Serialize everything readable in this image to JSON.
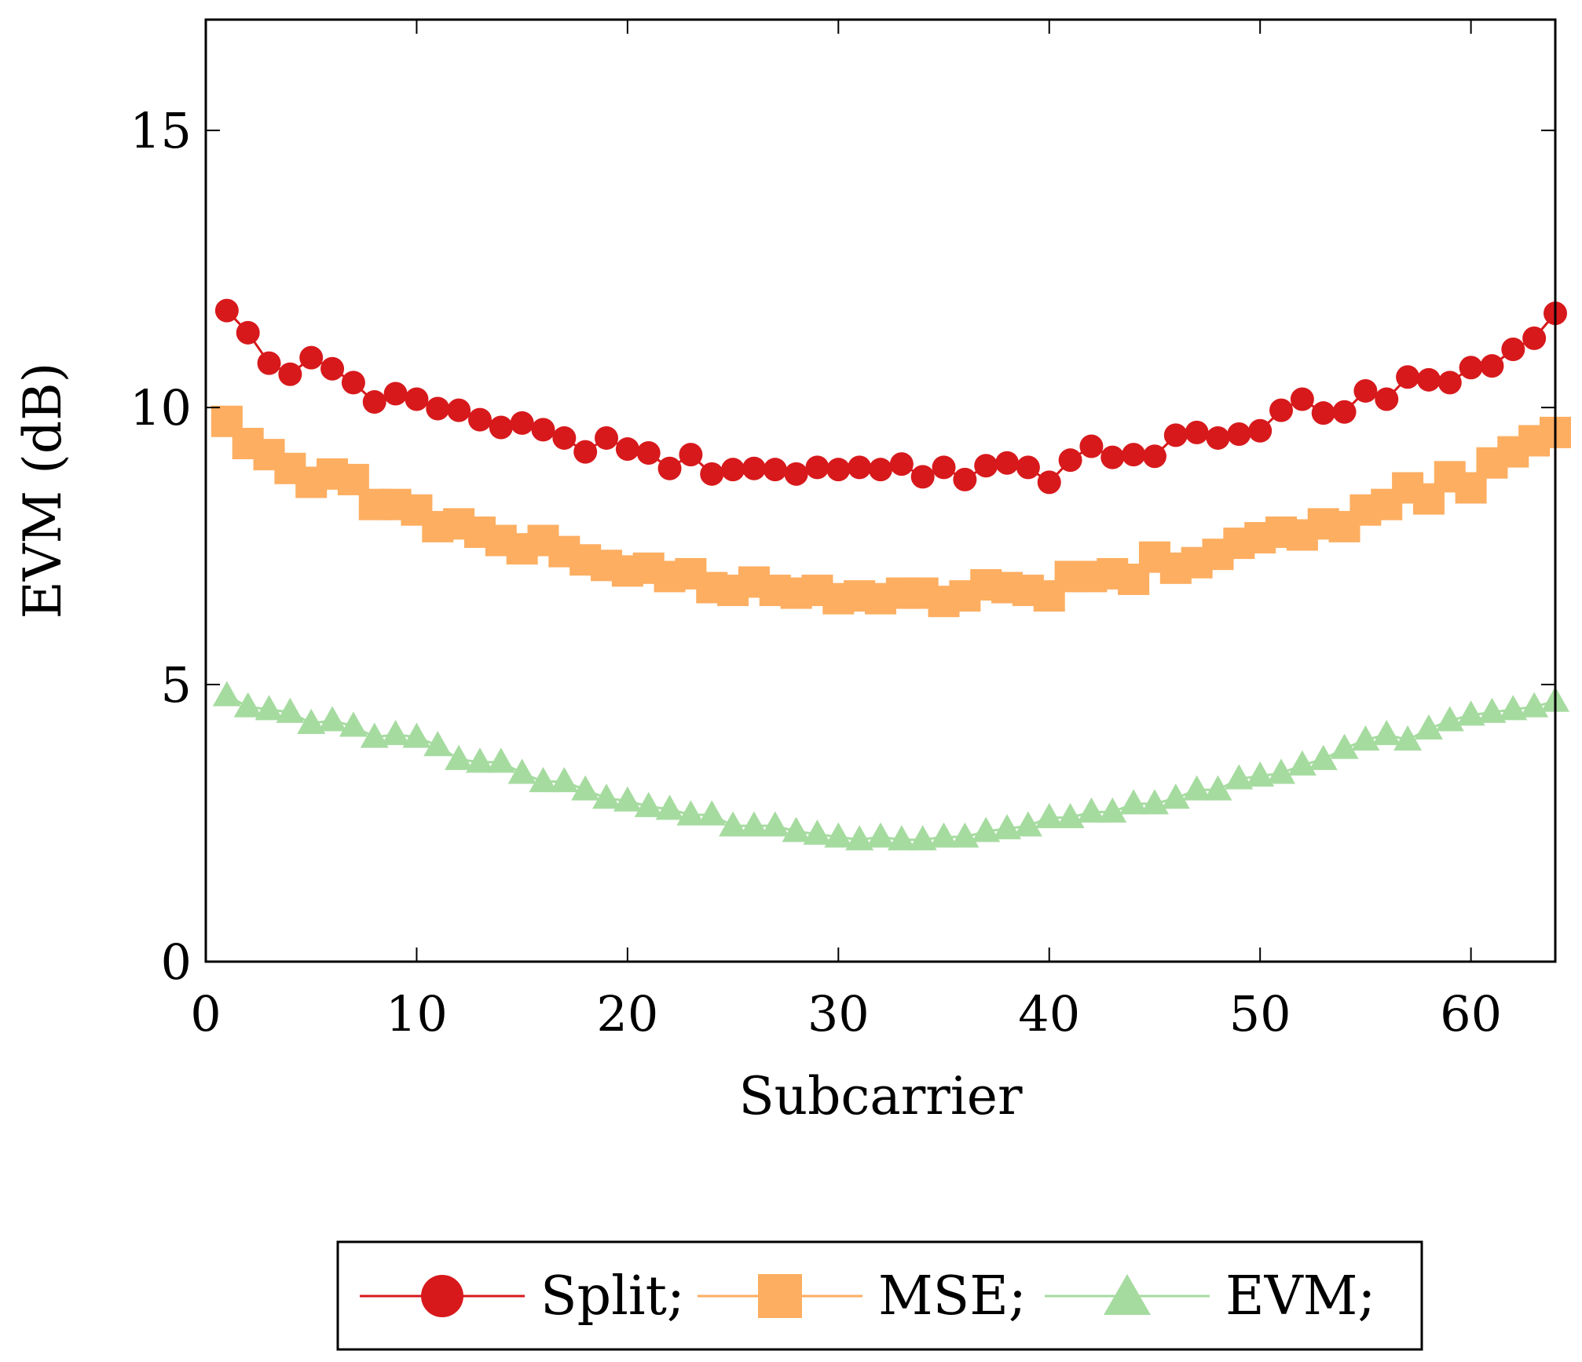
{
  "chart_data": {
    "type": "line",
    "title": "",
    "xlabel": "Subcarrier",
    "ylabel": "EVM (dB)",
    "xlim": [
      0,
      64
    ],
    "ylim": [
      0,
      17
    ],
    "xticks": [
      0,
      10,
      20,
      30,
      40,
      50,
      60
    ],
    "yticks": [
      0,
      5,
      10,
      15
    ],
    "grid": false,
    "legend_position": "bottom-center",
    "x": [
      1,
      2,
      3,
      4,
      5,
      6,
      7,
      8,
      9,
      10,
      11,
      12,
      13,
      14,
      15,
      16,
      17,
      18,
      19,
      20,
      21,
      22,
      23,
      24,
      25,
      26,
      27,
      28,
      29,
      30,
      31,
      32,
      33,
      34,
      35,
      36,
      37,
      38,
      39,
      40,
      41,
      42,
      43,
      44,
      45,
      46,
      47,
      48,
      49,
      50,
      51,
      52,
      53,
      54,
      55,
      56,
      57,
      58,
      59,
      60,
      61,
      62,
      63,
      64
    ],
    "series": [
      {
        "name": "Split;",
        "color": "#d7191c",
        "marker": "circle",
        "values": [
          11.75,
          11.35,
          10.8,
          10.6,
          10.9,
          10.7,
          10.45,
          10.1,
          10.25,
          10.15,
          9.98,
          9.95,
          9.78,
          9.64,
          9.72,
          9.6,
          9.45,
          9.2,
          9.45,
          9.25,
          9.18,
          8.9,
          9.15,
          8.8,
          8.88,
          8.9,
          8.88,
          8.8,
          8.92,
          8.88,
          8.92,
          8.88,
          8.98,
          8.75,
          8.92,
          8.7,
          8.95,
          9.0,
          8.92,
          8.65,
          9.05,
          9.3,
          9.1,
          9.15,
          9.12,
          9.5,
          9.55,
          9.45,
          9.52,
          9.58,
          9.95,
          10.15,
          9.9,
          9.92,
          10.3,
          10.15,
          10.55,
          10.5,
          10.45,
          10.72,
          10.75,
          11.05,
          11.25,
          11.7
        ]
      },
      {
        "name": "MSE;",
        "color": "#fdae61",
        "marker": "square",
        "values": [
          9.75,
          9.35,
          9.15,
          8.9,
          8.65,
          8.8,
          8.7,
          8.25,
          8.25,
          8.15,
          7.85,
          7.9,
          7.75,
          7.6,
          7.45,
          7.6,
          7.4,
          7.25,
          7.15,
          7.05,
          7.1,
          6.95,
          7.0,
          6.75,
          6.7,
          6.85,
          6.7,
          6.65,
          6.7,
          6.55,
          6.6,
          6.55,
          6.65,
          6.65,
          6.5,
          6.6,
          6.8,
          6.75,
          6.7,
          6.6,
          6.95,
          6.95,
          7.0,
          6.9,
          7.3,
          7.1,
          7.2,
          7.35,
          7.55,
          7.65,
          7.75,
          7.7,
          7.9,
          7.85,
          8.15,
          8.25,
          8.55,
          8.35,
          8.75,
          8.55,
          9.0,
          9.2,
          9.4,
          9.55
        ]
      },
      {
        "name": "EVM;",
        "color": "#a6dba0",
        "marker": "triangle",
        "values": [
          4.8,
          4.6,
          4.55,
          4.5,
          4.3,
          4.35,
          4.25,
          4.05,
          4.1,
          4.05,
          3.9,
          3.65,
          3.6,
          3.6,
          3.4,
          3.25,
          3.25,
          3.1,
          2.95,
          2.9,
          2.8,
          2.75,
          2.65,
          2.65,
          2.45,
          2.45,
          2.45,
          2.35,
          2.3,
          2.25,
          2.2,
          2.25,
          2.2,
          2.2,
          2.25,
          2.25,
          2.35,
          2.4,
          2.45,
          2.6,
          2.6,
          2.7,
          2.7,
          2.85,
          2.85,
          2.95,
          3.1,
          3.1,
          3.3,
          3.35,
          3.4,
          3.55,
          3.65,
          3.85,
          4.0,
          4.1,
          4.0,
          4.2,
          4.35,
          4.45,
          4.5,
          4.55,
          4.6,
          4.7
        ]
      }
    ]
  }
}
